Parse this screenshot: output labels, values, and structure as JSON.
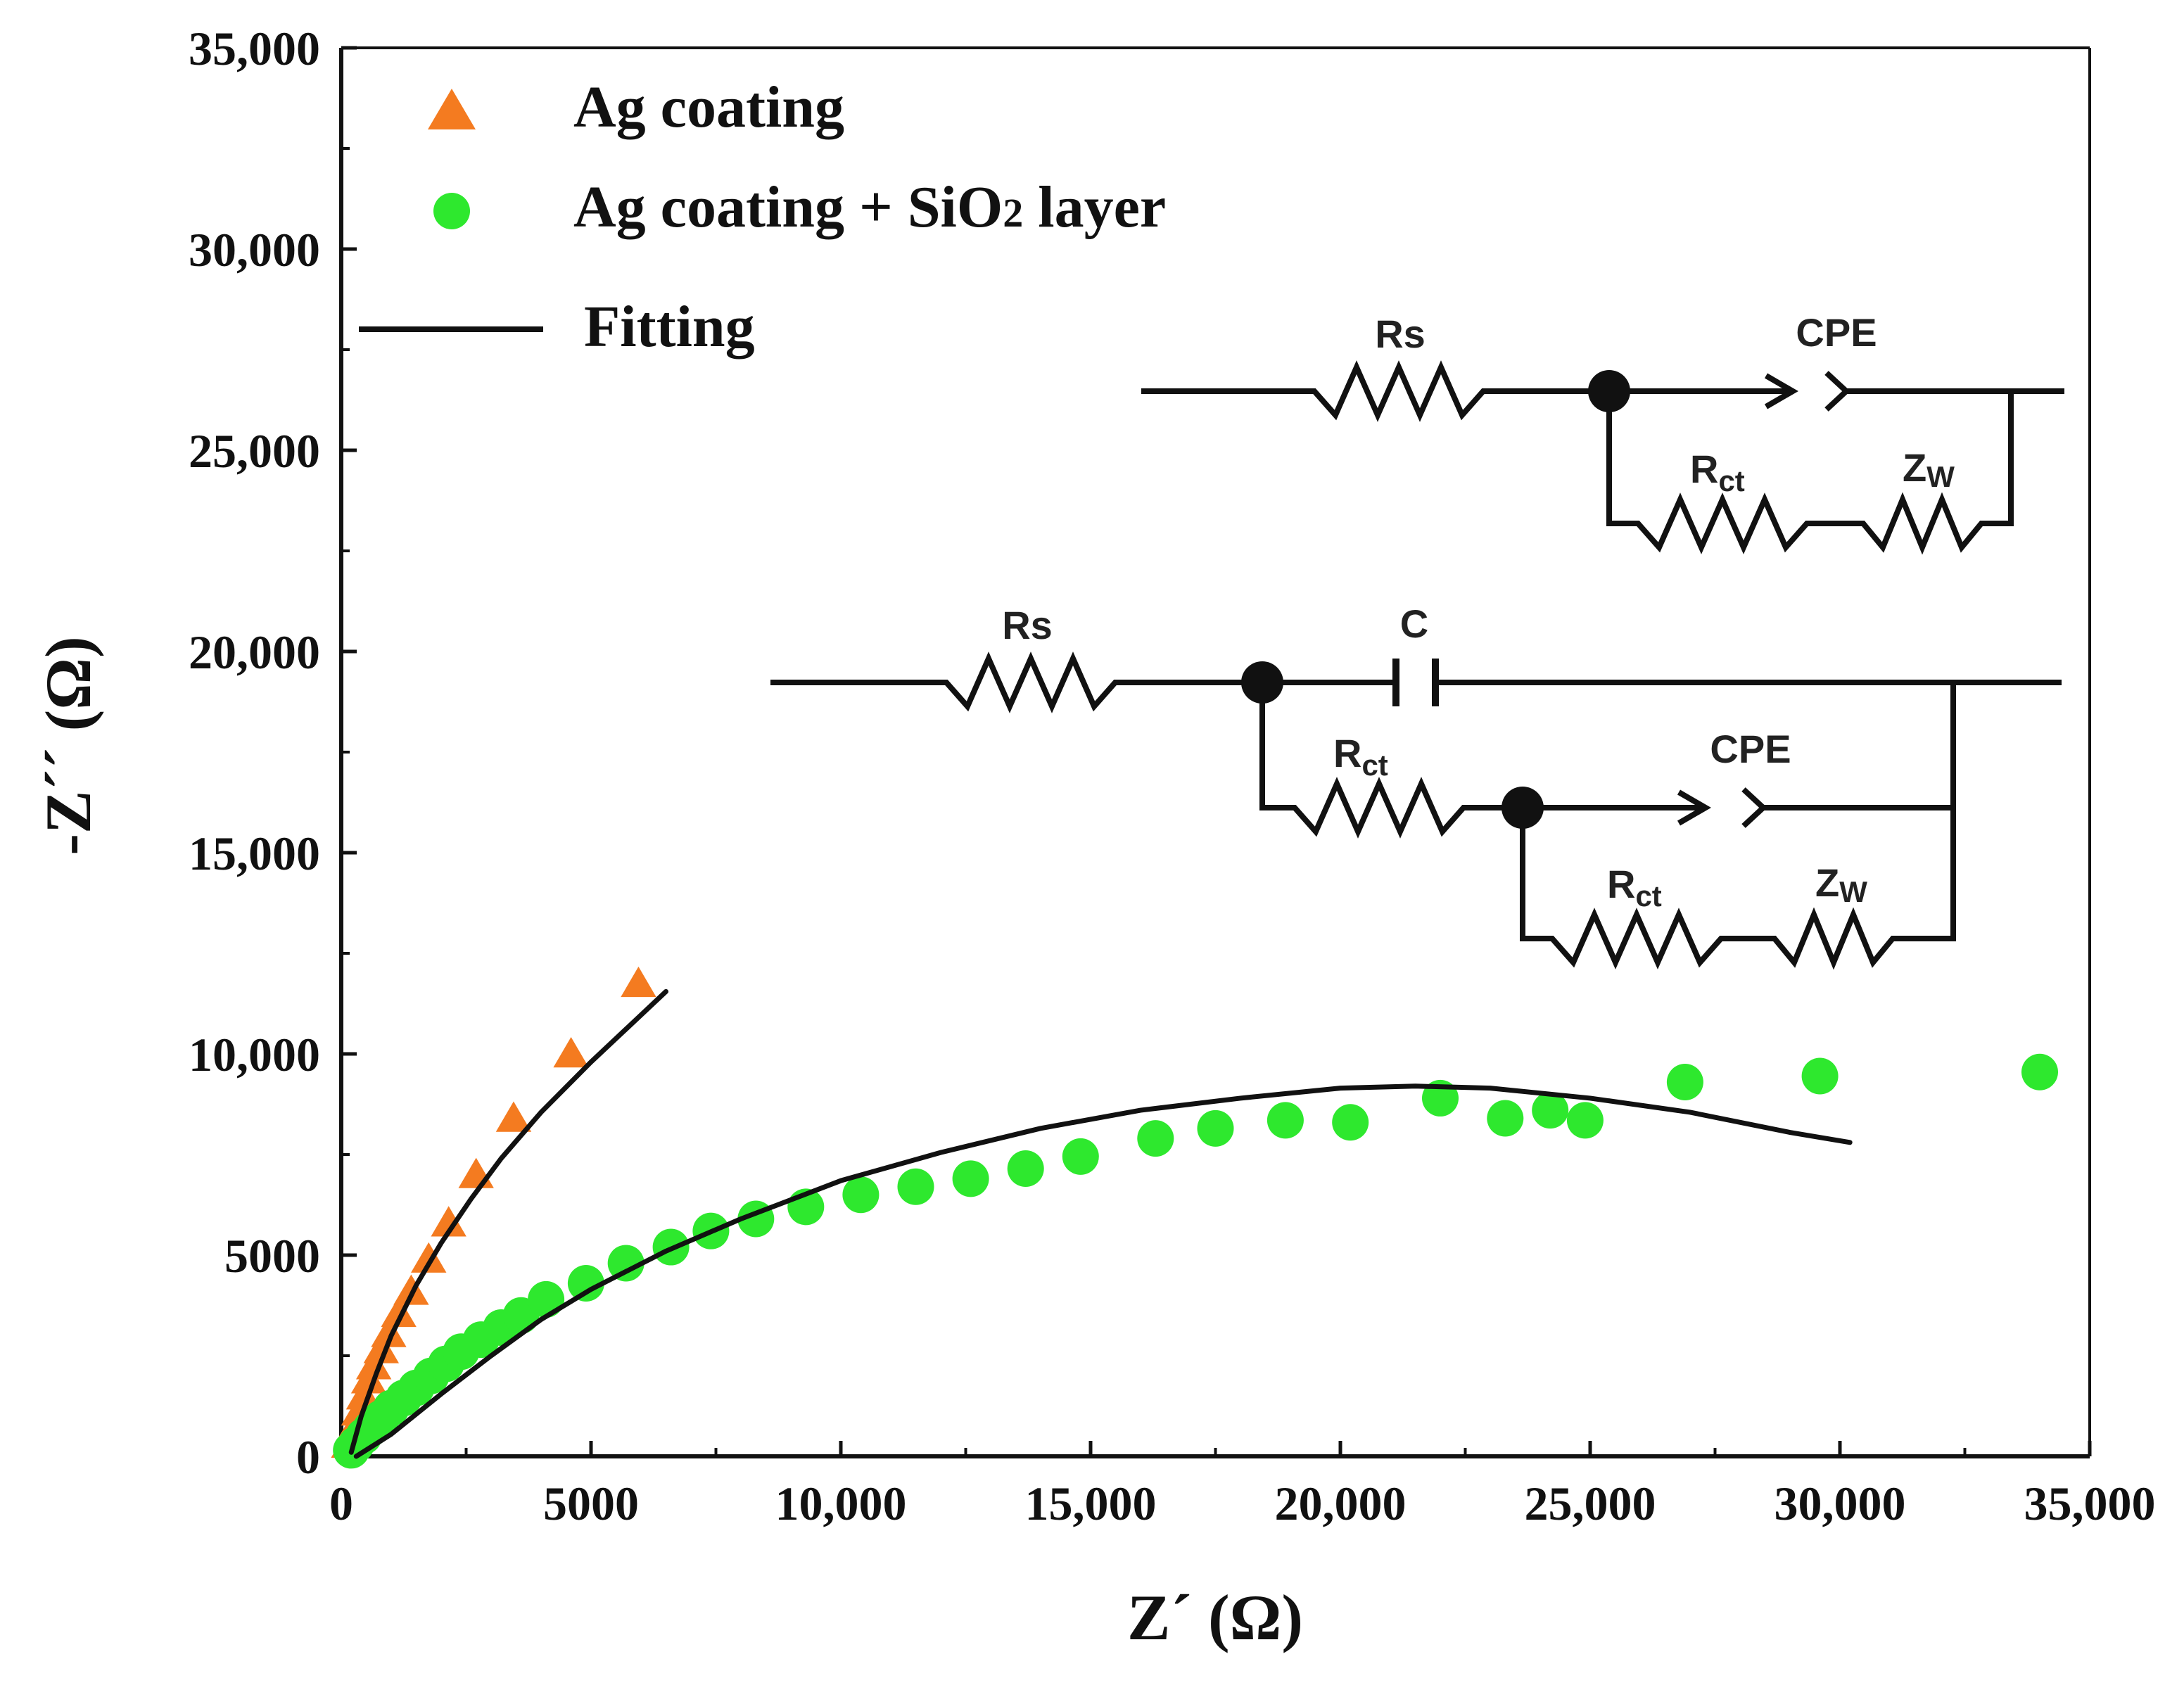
{
  "colors": {
    "ag_coating": "#f47b20",
    "ag_sio2": "#2ee82e",
    "fit": "#111111",
    "axis": "#111111"
  },
  "chart_data": {
    "type": "scatter",
    "title": "",
    "xlabel": "Z´ (Ω)",
    "ylabel": "-Z´´ (Ω)",
    "xlim": [
      0,
      35000
    ],
    "ylim": [
      0,
      35000
    ],
    "grid": false,
    "legend_position": "top-left",
    "xticks": [
      0,
      5000,
      10000,
      15000,
      20000,
      25000,
      30000,
      35000
    ],
    "xtick_labels": [
      "0",
      "5000",
      "10,000",
      "15,000",
      "20,000",
      "25,000",
      "30,000",
      "35,000"
    ],
    "yticks": [
      0,
      5000,
      10000,
      15000,
      20000,
      25000,
      30000,
      35000
    ],
    "ytick_labels": [
      "0",
      "5000",
      "10,000",
      "15,000",
      "20,000",
      "25,000",
      "30,000",
      "35,000"
    ],
    "legend": {
      "ag": "Ag coating",
      "ag_sio2_prefix": "Ag coating + SiO",
      "ag_sio2_sub": "2",
      "ag_sio2_suffix": " layer",
      "fit": "Fitting"
    },
    "series": [
      {
        "name": "Ag coating",
        "marker": "triangle",
        "x": [
          150,
          250,
          350,
          450,
          550,
          650,
          800,
          950,
          1150,
          1400,
          1750,
          2150,
          2700,
          3450,
          4600,
          5950
        ],
        "y": [
          300,
          700,
          1100,
          1500,
          1900,
          2250,
          2650,
          3050,
          3550,
          4100,
          4900,
          5800,
          7000,
          8400,
          10000,
          11750
        ]
      },
      {
        "name": "Ag coating + SiO2 layer",
        "marker": "circle",
        "x": [
          200,
          300,
          450,
          600,
          800,
          1000,
          1250,
          1500,
          1800,
          2100,
          2400,
          2800,
          3200,
          3600,
          4100,
          4900,
          5700,
          6600,
          7400,
          8300,
          9300,
          10400,
          11500,
          12600,
          13700,
          14800,
          16300,
          17500,
          18900,
          20200,
          22000,
          23300,
          24200,
          24900,
          26900,
          29600,
          34000
        ],
        "y": [
          150,
          300,
          500,
          700,
          950,
          1200,
          1450,
          1700,
          2000,
          2300,
          2600,
          2900,
          3200,
          3500,
          3900,
          4300,
          4800,
          5200,
          5600,
          5900,
          6200,
          6500,
          6700,
          6900,
          7150,
          7450,
          7900,
          8150,
          8350,
          8300,
          8900,
          8400,
          8600,
          8350,
          9300,
          9450,
          9550
        ]
      },
      {
        "name": "Fitting",
        "marker": "line",
        "curves": [
          {
            "x": [
              200,
              400,
              700,
              1000,
              1500,
              2000,
              2600,
              3200,
              4000,
              5000,
              6500
            ],
            "y": [
              100,
              1000,
              2050,
              3000,
              4250,
              5300,
              6400,
              7400,
              8550,
              9800,
              11550
            ]
          },
          {
            "x": [
              300,
              1000,
              2000,
              3000,
              4000,
              5000,
              6500,
              8000,
              10000,
              12000,
              14000,
              16000,
              18000,
              20000,
              21500,
              23000,
              25000,
              27000,
              29000,
              30200
            ],
            "y": [
              0,
              550,
              1550,
              2500,
              3400,
              4150,
              5100,
              5900,
              6850,
              7550,
              8150,
              8600,
              8900,
              9150,
              9200,
              9150,
              8900,
              8550,
              8050,
              7800
            ]
          }
        ]
      }
    ]
  },
  "circuits": {
    "top": {
      "rs": "Rs",
      "cpe": "CPE",
      "rct": "R",
      "rct_sub": "ct",
      "zw": "Z",
      "zw_sub": "W"
    },
    "bottom": {
      "rs": "Rs",
      "c": "C",
      "rct1": "R",
      "rct1_sub": "ct",
      "cpe": "CPE",
      "rct2": "R",
      "rct2_sub": "ct",
      "zw": "Z",
      "zw_sub": "W"
    }
  }
}
